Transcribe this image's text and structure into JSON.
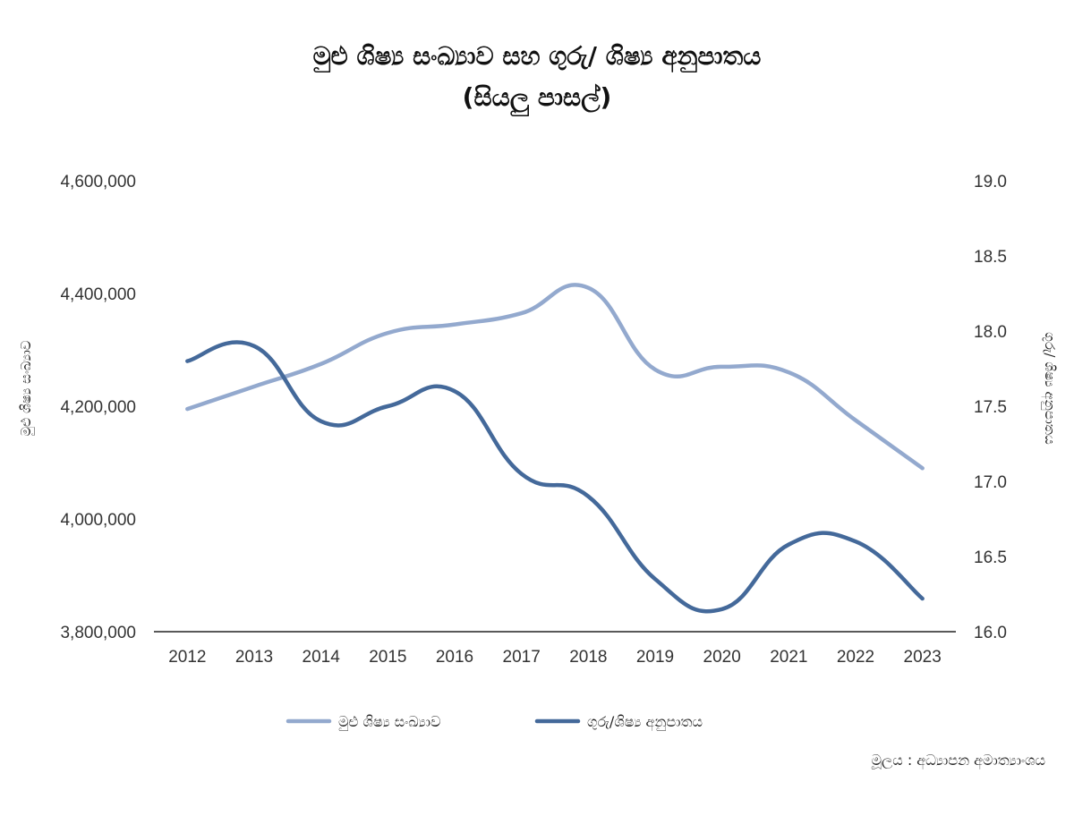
{
  "chart_data": {
    "type": "line",
    "title": "මුළු ශිෂ්‍ය සංඛ්‍යාව සහ ගුරු/ ශිෂ්‍ය අනුපාතය",
    "subtitle": "(සියලු පාසල්)",
    "x": [
      "2012",
      "2013",
      "2014",
      "2015",
      "2016",
      "2017",
      "2018",
      "2019",
      "2020",
      "2021",
      "2022",
      "2023"
    ],
    "y_left": {
      "label": "මුළු ශිෂ්‍ය සංඛ්‍යාව",
      "ylim": [
        3800000,
        4600000
      ],
      "ticks": [
        "3,800,000",
        "4,000,000",
        "4,200,000",
        "4,400,000",
        "4,600,000"
      ]
    },
    "y_right": {
      "label": "ගුරු/ ශිෂ්‍ය අනුපාතය",
      "ylim": [
        16.0,
        19.0
      ],
      "ticks": [
        "16.0",
        "16.5",
        "17.0",
        "17.5",
        "18.0",
        "18.5",
        "19.0"
      ]
    },
    "series": [
      {
        "name": "මුළු ශිෂ්‍ය සංඛ්‍යාව",
        "axis": "left",
        "color": "#93A9CE",
        "values": [
          4195000,
          4235000,
          4275000,
          4330000,
          4345000,
          4365000,
          4410000,
          4265000,
          4270000,
          4260000,
          4175000,
          4090000
        ]
      },
      {
        "name": "ගුරු/ශිෂ්‍ය අනුපාතය",
        "axis": "right",
        "color": "#44699A",
        "values": [
          17.8,
          17.9,
          17.4,
          17.5,
          17.6,
          17.05,
          16.9,
          16.35,
          16.15,
          16.58,
          16.6,
          16.22
        ]
      }
    ],
    "grid": false,
    "legend_position": "bottom"
  },
  "source_text": "මූලය : අධ්‍යාපන අමාත්‍යාංශය"
}
